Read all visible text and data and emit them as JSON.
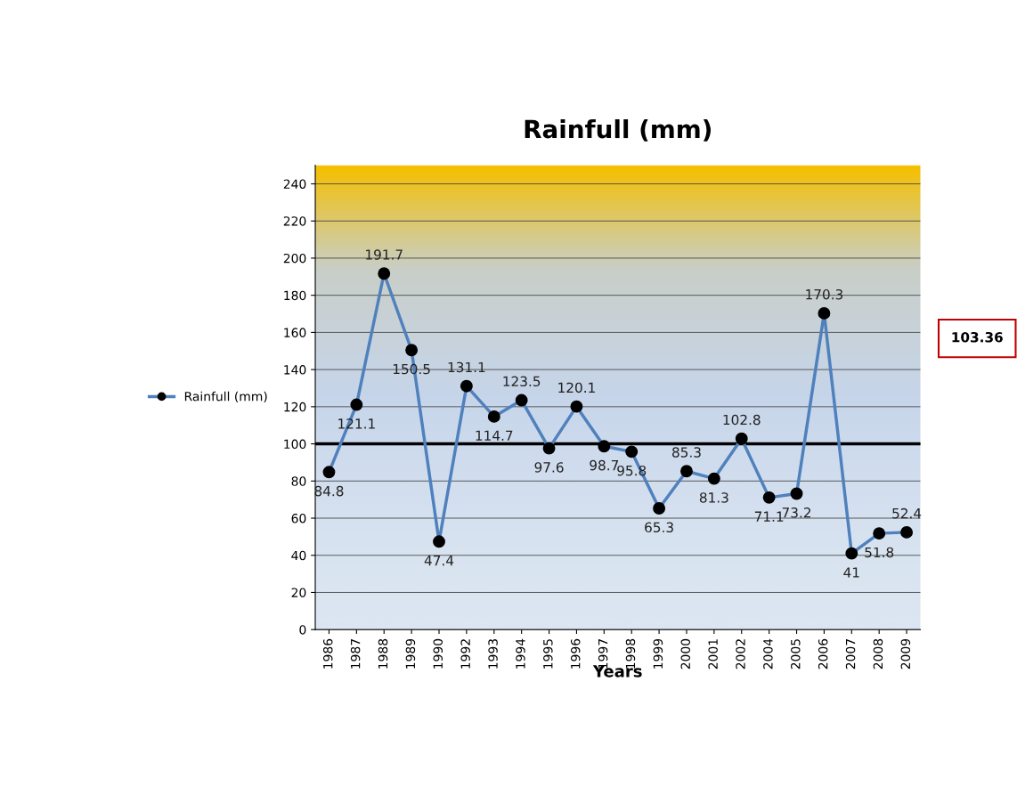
{
  "chart_data": {
    "type": "line",
    "title": "Rainfull (mm)",
    "xlabel": "Years",
    "categories": [
      "1986",
      "1987",
      "1988",
      "1989",
      "1990",
      "1992",
      "1993",
      "1994",
      "1995",
      "1996",
      "1997",
      "1998",
      "1999",
      "2000",
      "2001",
      "2002",
      "2004",
      "2005",
      "2006",
      "2007",
      "2008",
      "2009"
    ],
    "series": [
      {
        "name": "Rainfull (mm)",
        "color": "#4f81bd",
        "values": [
          84.8,
          121.1,
          191.7,
          150.5,
          47.4,
          131.1,
          114.7,
          123.5,
          97.6,
          120.1,
          98.7,
          95.8,
          65.3,
          85.3,
          81.3,
          102.8,
          71.1,
          73.2,
          170.3,
          41,
          51.8,
          52.4
        ]
      }
    ],
    "ylim": [
      0,
      250
    ],
    "yticks": [
      0,
      20,
      40,
      60,
      80,
      100,
      120,
      140,
      160,
      180,
      200,
      220,
      240
    ],
    "ref_lines": [
      {
        "axis": "y",
        "value": 100,
        "color": "#000000"
      }
    ],
    "annotations": [
      "103.36"
    ],
    "data_labels": true,
    "grid": "y",
    "legend": "left",
    "marker": "circle",
    "line_style": "solid"
  }
}
